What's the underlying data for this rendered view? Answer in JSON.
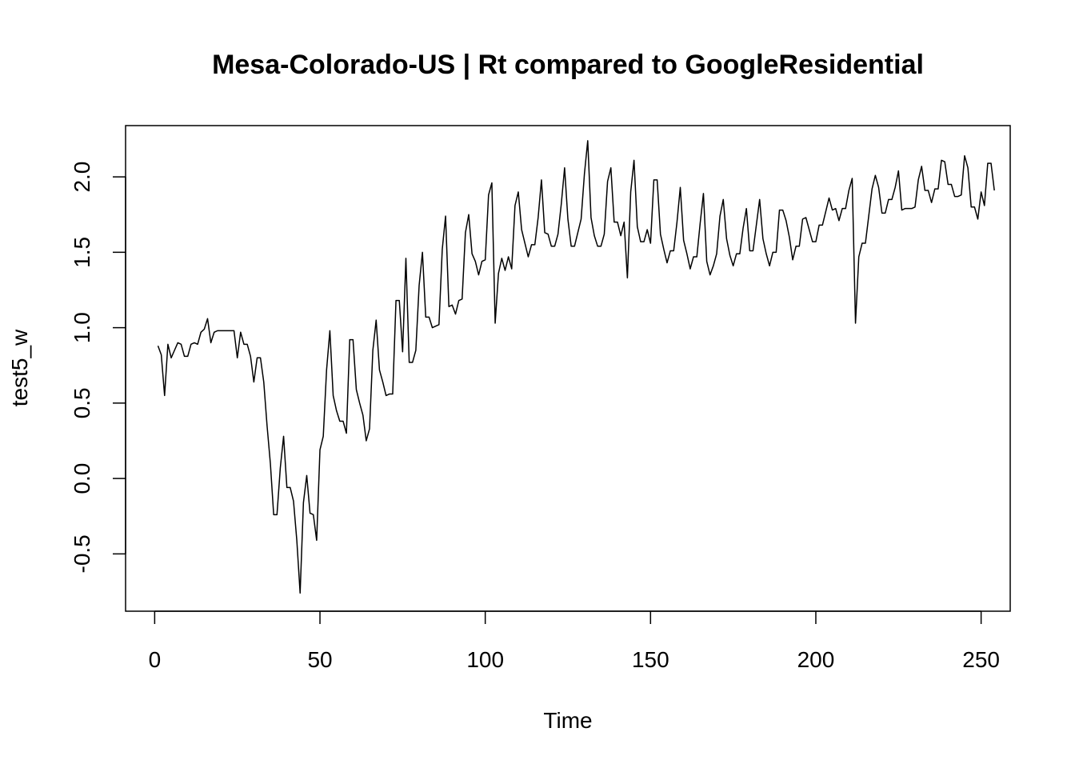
{
  "chart_data": {
    "type": "line",
    "title": "Mesa-Colorado-US | Rt compared to GoogleResidential",
    "xlabel": "Time",
    "ylabel": "test5_w",
    "xlim": [
      -8.8,
      258.8
    ],
    "ylim": [
      -0.88,
      2.34
    ],
    "x_ticks": [
      0,
      50,
      100,
      150,
      200,
      250
    ],
    "y_ticks": [
      -0.5,
      0.0,
      0.5,
      1.0,
      1.5,
      2.0
    ],
    "x_tick_labels": [
      "0",
      "50",
      "100",
      "150",
      "200",
      "250"
    ],
    "y_tick_labels": [
      "-0.5",
      "0.0",
      "0.5",
      "1.0",
      "1.5",
      "2.0"
    ],
    "grid": false,
    "legend": "none",
    "series": [
      {
        "color": "#000000",
        "x_start": 1,
        "values": [
          0.88,
          0.82,
          0.55,
          0.89,
          0.8,
          0.85,
          0.9,
          0.89,
          0.81,
          0.81,
          0.89,
          0.9,
          0.89,
          0.97,
          0.99,
          1.06,
          0.9,
          0.97,
          0.98,
          0.98,
          0.98,
          0.98,
          0.98,
          0.98,
          0.8,
          0.97,
          0.89,
          0.89,
          0.81,
          0.64,
          0.8,
          0.8,
          0.64,
          0.35,
          0.1,
          -0.24,
          -0.24,
          0.07,
          0.28,
          -0.06,
          -0.06,
          -0.15,
          -0.41,
          -0.76,
          -0.16,
          0.02,
          -0.23,
          -0.24,
          -0.41,
          0.19,
          0.28,
          0.72,
          0.98,
          0.55,
          0.45,
          0.38,
          0.38,
          0.3,
          0.92,
          0.92,
          0.59,
          0.5,
          0.42,
          0.25,
          0.33,
          0.85,
          1.05,
          0.72,
          0.64,
          0.55,
          0.56,
          0.56,
          1.18,
          1.18,
          0.84,
          1.46,
          0.77,
          0.77,
          0.85,
          1.28,
          1.5,
          1.07,
          1.07,
          1.0,
          1.01,
          1.02,
          1.52,
          1.74,
          1.14,
          1.15,
          1.09,
          1.18,
          1.19,
          1.63,
          1.75,
          1.49,
          1.44,
          1.35,
          1.44,
          1.45,
          1.88,
          1.96,
          1.03,
          1.36,
          1.46,
          1.38,
          1.47,
          1.39,
          1.81,
          1.9,
          1.65,
          1.56,
          1.47,
          1.55,
          1.55,
          1.73,
          1.98,
          1.63,
          1.62,
          1.54,
          1.54,
          1.62,
          1.82,
          2.06,
          1.72,
          1.54,
          1.54,
          1.63,
          1.72,
          2.02,
          2.24,
          1.73,
          1.61,
          1.54,
          1.54,
          1.62,
          1.97,
          2.06,
          1.7,
          1.7,
          1.61,
          1.7,
          1.33,
          1.9,
          2.11,
          1.67,
          1.57,
          1.57,
          1.65,
          1.56,
          1.98,
          1.98,
          1.62,
          1.52,
          1.43,
          1.51,
          1.51,
          1.7,
          1.93,
          1.58,
          1.49,
          1.39,
          1.47,
          1.47,
          1.69,
          1.89,
          1.44,
          1.35,
          1.41,
          1.49,
          1.74,
          1.85,
          1.59,
          1.48,
          1.41,
          1.49,
          1.49,
          1.66,
          1.79,
          1.51,
          1.51,
          1.68,
          1.85,
          1.59,
          1.49,
          1.41,
          1.5,
          1.5,
          1.78,
          1.78,
          1.71,
          1.6,
          1.45,
          1.54,
          1.54,
          1.72,
          1.73,
          1.65,
          1.57,
          1.57,
          1.68,
          1.68,
          1.77,
          1.86,
          1.78,
          1.79,
          1.71,
          1.79,
          1.79,
          1.91,
          1.99,
          1.03,
          1.47,
          1.56,
          1.56,
          1.74,
          1.92,
          2.01,
          1.93,
          1.76,
          1.76,
          1.85,
          1.85,
          1.93,
          2.04,
          1.78,
          1.79,
          1.79,
          1.79,
          1.8,
          1.98,
          2.07,
          1.91,
          1.91,
          1.83,
          1.92,
          1.92,
          2.11,
          2.1,
          1.95,
          1.95,
          1.87,
          1.87,
          1.88,
          2.14,
          2.06,
          1.8,
          1.8,
          1.72,
          1.9,
          1.81,
          2.09,
          2.09,
          1.91
        ]
      }
    ]
  }
}
